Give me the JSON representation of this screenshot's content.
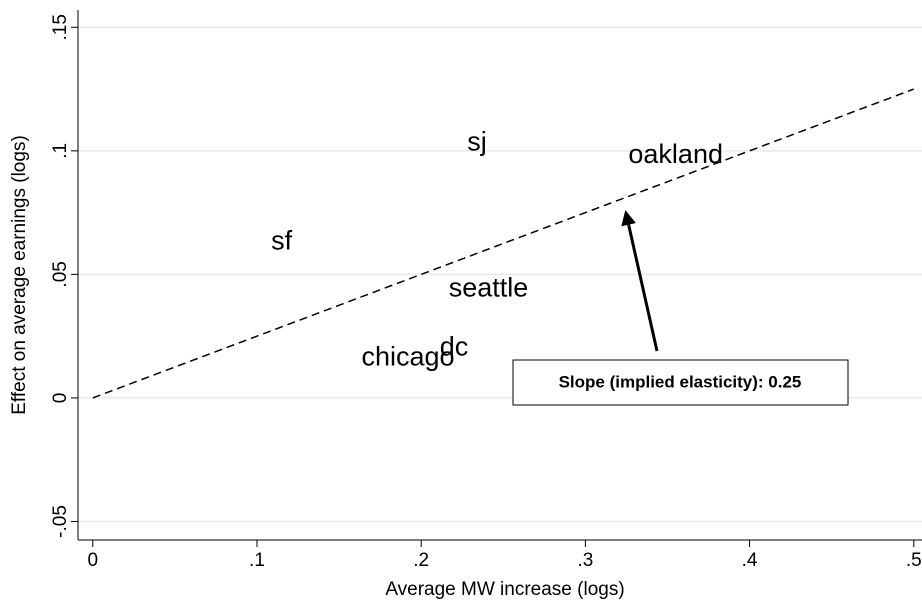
{
  "chart_data": {
    "type": "scatter",
    "x_label": "Average MW increase (logs)",
    "y_label": "Effect on average earnings (logs)",
    "labels": [
      "sf",
      "sj",
      "oakland",
      "seattle",
      "dc",
      "chicago"
    ],
    "x": [
      0.115,
      0.234,
      0.355,
      0.241,
      0.22,
      0.192
    ],
    "y": [
      0.063,
      0.103,
      0.098,
      0.044,
      0.02,
      0.016
    ],
    "fit": {
      "x": [
        0,
        0.5
      ],
      "y": [
        0,
        0.125
      ]
    },
    "annotation": "Slope (implied elasticity): 0.25",
    "xlim": [
      -0.009,
      0.505
    ],
    "ylim": [
      -0.0575,
      0.157
    ],
    "xticks": [
      0,
      {
        "value": 0.1,
        "label": ".1"
      },
      {
        "value": 0.2,
        "label": ".2"
      },
      {
        "value": 0.3,
        "label": ".3"
      },
      {
        "value": 0.4,
        "label": ".4"
      },
      {
        "value": 0.5,
        "label": ".5"
      }
    ],
    "yticks": [
      {
        "value": -0.05,
        "label": "-.05"
      },
      0,
      {
        "value": 0.05,
        "label": ".05"
      },
      {
        "value": 0.1,
        "label": ".1"
      },
      {
        "value": 0.15,
        "label": ".15"
      }
    ],
    "grid": true
  }
}
